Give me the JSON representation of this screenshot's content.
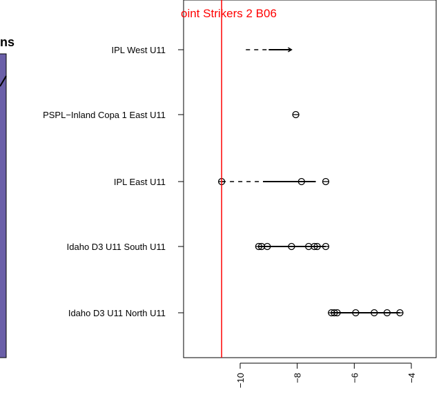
{
  "chart_data": {
    "type": "scatter",
    "title": "oint Strikers 2 B06",
    "left_panel_fragment": "ns",
    "xlabel": "",
    "ylabel": "",
    "xlim": [
      -11.6,
      -3.4
    ],
    "x_ticks": [
      -10,
      -8,
      -6,
      -4
    ],
    "x_tick_labels": [
      "−10",
      "−8",
      "−6",
      "−4"
    ],
    "reference_line": {
      "x": -10.65,
      "color": "#ff0000"
    },
    "categories": [
      "IPL West U11",
      "PSPL−Inland Copa 1 East U11",
      "IPL East U11",
      "Idaho D3 U11 South U11",
      "Idaho D3 U11 North U11"
    ],
    "groups": [
      {
        "category": "IPL West U11",
        "points": [],
        "dashed_range": [
          -9.8,
          -9.0
        ],
        "solid_range": [
          -9.0,
          -8.2
        ],
        "arrow_end": -8.2
      },
      {
        "category": "PSPL−Inland Copa 1 East U11",
        "points": [
          -8.05
        ],
        "dashed_range": null,
        "solid_range": null,
        "arrow_end": null
      },
      {
        "category": "IPL East U11",
        "points": [
          -10.65,
          -7.85,
          -7.0
        ],
        "dashed_range": [
          -10.65,
          -9.2
        ],
        "solid_range": [
          -9.2,
          -7.35
        ],
        "arrow_end": null
      },
      {
        "category": "Idaho D3 U11 South U11",
        "points": [
          -9.35,
          -9.25,
          -9.05,
          -8.2,
          -7.6,
          -7.4,
          -7.3,
          -7.0
        ],
        "dashed_range": null,
        "solid_range": [
          -9.35,
          -7.0
        ],
        "arrow_end": null
      },
      {
        "category": "Idaho D3 U11 North U11",
        "points": [
          -6.8,
          -6.7,
          -6.6,
          -5.95,
          -5.3,
          -4.85,
          -4.4
        ],
        "dashed_range": null,
        "solid_range": [
          -6.8,
          -4.4
        ],
        "arrow_end": null
      }
    ],
    "grid": false,
    "legend": "none"
  },
  "colors": {
    "left_panel_fill": "#6a5fa8",
    "reference": "#ff0000",
    "ink": "#000000"
  }
}
